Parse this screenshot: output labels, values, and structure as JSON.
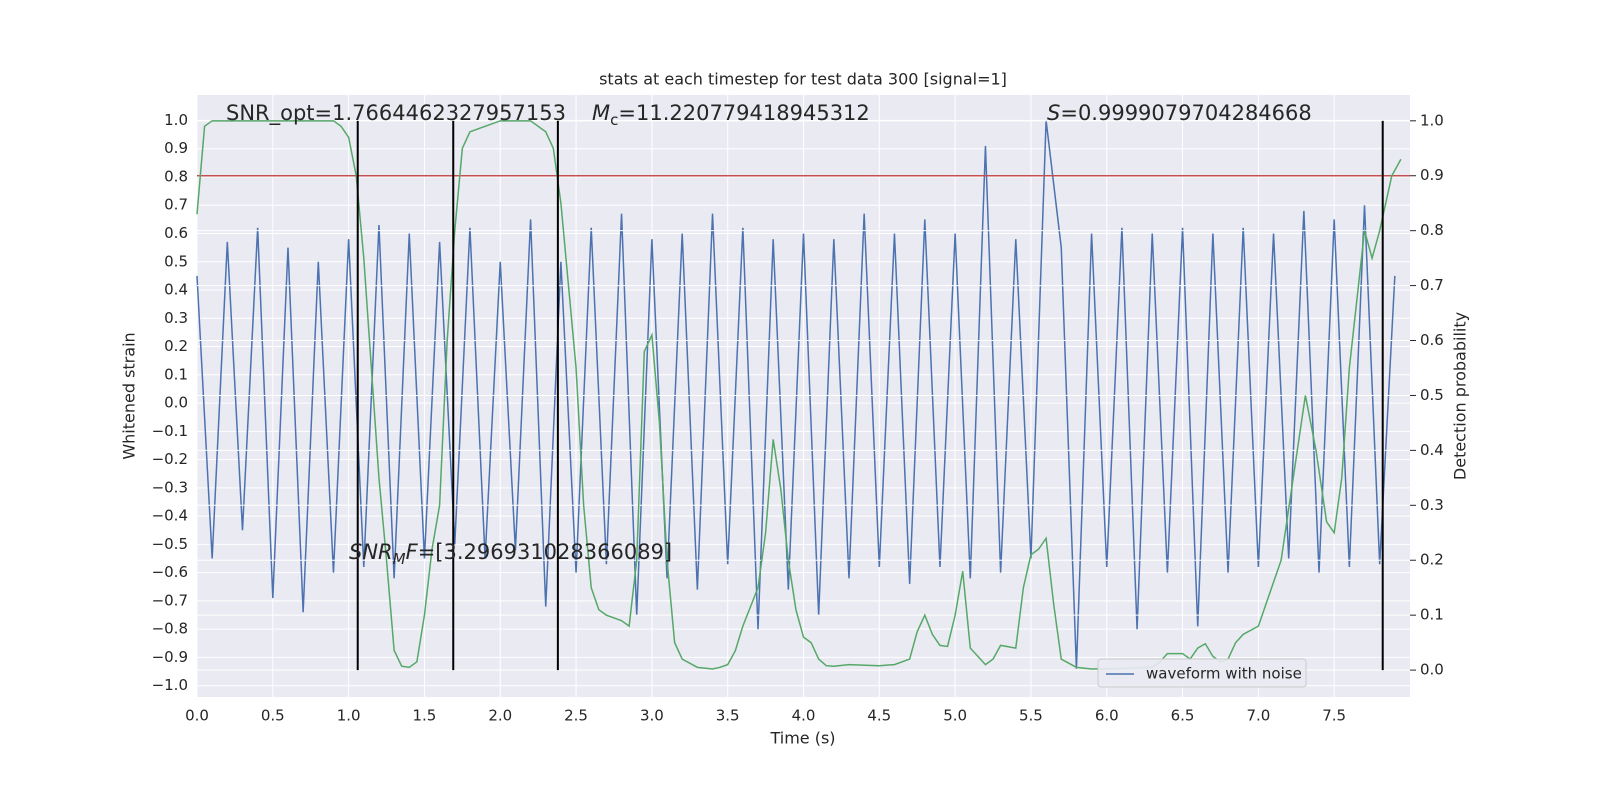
{
  "chart_data": {
    "type": "line",
    "title": "stats at each timestep for test data 300 [signal=1]",
    "xlabel": "Time (s)",
    "ylabel": "Whitened strain",
    "y2label": "Detection probability",
    "xlim": [
      0,
      8.0
    ],
    "ylim": [
      -1.04,
      1.09
    ],
    "y2lim": [
      -0.049,
      1.047
    ],
    "grid": true,
    "legend": "lower right",
    "xticks": [
      {
        "value": 0,
        "label": "0.0"
      },
      {
        "value": 0.5,
        "label": "0.5"
      },
      {
        "value": 1,
        "label": "1.0"
      },
      {
        "value": 1.5,
        "label": "1.5"
      },
      {
        "value": 2,
        "label": "2.0"
      },
      {
        "value": 2.5,
        "label": "2.5"
      },
      {
        "value": 3,
        "label": "3.0"
      },
      {
        "value": 3.5,
        "label": "3.5"
      },
      {
        "value": 4,
        "label": "4.0"
      },
      {
        "value": 4.5,
        "label": "4.5"
      },
      {
        "value": 5,
        "label": "5.0"
      },
      {
        "value": 5.5,
        "label": "5.5"
      },
      {
        "value": 6,
        "label": "6.0"
      },
      {
        "value": 6.5,
        "label": "6.5"
      },
      {
        "value": 7,
        "label": "7.0"
      },
      {
        "value": 7.5,
        "label": "7.5"
      }
    ],
    "yticks": [
      {
        "value": -1,
        "label": "−1.0"
      },
      {
        "value": -0.9,
        "label": "−0.9"
      },
      {
        "value": -0.8,
        "label": "−0.8"
      },
      {
        "value": -0.7,
        "label": "−0.7"
      },
      {
        "value": -0.6,
        "label": "−0.6"
      },
      {
        "value": -0.5,
        "label": "−0.5"
      },
      {
        "value": -0.4,
        "label": "−0.4"
      },
      {
        "value": -0.3,
        "label": "−0.3"
      },
      {
        "value": -0.2,
        "label": "−0.2"
      },
      {
        "value": -0.1,
        "label": "−0.1"
      },
      {
        "value": 0,
        "label": "0.0"
      },
      {
        "value": 0.1,
        "label": "0.1"
      },
      {
        "value": 0.2,
        "label": "0.2"
      },
      {
        "value": 0.3,
        "label": "0.3"
      },
      {
        "value": 0.4,
        "label": "0.4"
      },
      {
        "value": 0.5,
        "label": "0.5"
      },
      {
        "value": 0.6,
        "label": "0.6"
      },
      {
        "value": 0.7,
        "label": "0.7"
      },
      {
        "value": 0.8,
        "label": "0.8"
      },
      {
        "value": 0.9,
        "label": "0.9"
      },
      {
        "value": 1,
        "label": "1.0"
      }
    ],
    "y2ticks": [
      {
        "value": 0,
        "label": "0.0"
      },
      {
        "value": 0.1,
        "label": "0.1"
      },
      {
        "value": 0.2,
        "label": "0.2"
      },
      {
        "value": 0.3,
        "label": "0.3"
      },
      {
        "value": 0.4,
        "label": "0.4"
      },
      {
        "value": 0.5,
        "label": "0.5"
      },
      {
        "value": 0.6,
        "label": "0.6"
      },
      {
        "value": 0.7,
        "label": "0.7"
      },
      {
        "value": 0.8,
        "label": "0.8"
      },
      {
        "value": 0.9,
        "label": "0.9"
      },
      {
        "value": 1,
        "label": "1.0"
      }
    ],
    "series": [
      {
        "name": "waveform with noise",
        "color": "#4c72b0",
        "x": [
          0,
          0.1,
          0.2,
          0.3,
          0.4,
          0.5,
          0.6,
          0.7,
          0.8,
          0.9,
          1,
          1.1,
          1.2,
          1.3,
          1.4,
          1.5,
          1.6,
          1.7,
          1.8,
          1.9,
          2,
          2.1,
          2.2,
          2.3,
          2.4,
          2.5,
          2.6,
          2.7,
          2.8,
          2.9,
          3,
          3.1,
          3.2,
          3.3,
          3.4,
          3.5,
          3.6,
          3.7,
          3.8,
          3.9,
          4,
          4.1,
          4.2,
          4.3,
          4.4,
          4.5,
          4.6,
          4.7,
          4.8,
          4.9,
          5,
          5.1,
          5.2,
          5.3,
          5.4,
          5.5,
          5.6,
          5.7,
          5.8,
          5.9,
          6,
          6.1,
          6.2,
          6.3,
          6.4,
          6.5,
          6.6,
          6.7,
          6.8,
          6.9,
          7,
          7.1,
          7.2,
          7.3,
          7.4,
          7.5,
          7.6,
          7.7,
          7.8,
          7.9
        ],
        "values": [
          0.45,
          -0.55,
          0.57,
          -0.45,
          0.62,
          -0.69,
          0.55,
          -0.74,
          0.5,
          -0.6,
          0.58,
          -0.58,
          0.63,
          -0.62,
          0.6,
          -0.55,
          0.57,
          -0.5,
          0.62,
          -0.55,
          0.5,
          -0.52,
          0.65,
          -0.72,
          0.5,
          -0.6,
          0.62,
          -0.57,
          0.67,
          -0.75,
          0.58,
          -0.62,
          0.6,
          -0.66,
          0.67,
          -0.57,
          0.62,
          -0.8,
          0.58,
          -0.66,
          0.6,
          -0.75,
          0.58,
          -0.62,
          0.67,
          -0.58,
          0.6,
          -0.64,
          0.65,
          -0.58,
          0.6,
          -0.62,
          0.91,
          -0.6,
          0.58,
          -0.55,
          1.0,
          0.55,
          -0.94,
          0.6,
          -0.58,
          0.62,
          -0.8,
          0.6,
          -0.6,
          0.62,
          -0.79,
          0.6,
          -0.6,
          0.62,
          -0.58,
          0.6,
          -0.55,
          0.68,
          -0.6,
          0.65,
          -0.58,
          0.7,
          -0.57,
          0.45
        ]
      },
      {
        "color": "#55a868",
        "axis": "y2",
        "x": [
          0,
          0.05,
          0.1,
          0.3,
          0.5,
          0.7,
          0.9,
          0.95,
          1,
          1.05,
          1.1,
          1.15,
          1.2,
          1.25,
          1.3,
          1.35,
          1.4,
          1.45,
          1.5,
          1.55,
          1.6,
          1.65,
          1.7,
          1.75,
          1.8,
          1.9,
          2,
          2.1,
          2.2,
          2.3,
          2.35,
          2.4,
          2.45,
          2.5,
          2.55,
          2.6,
          2.65,
          2.7,
          2.8,
          2.85,
          2.9,
          2.95,
          3,
          3.05,
          3.1,
          3.15,
          3.2,
          3.3,
          3.4,
          3.45,
          3.5,
          3.55,
          3.6,
          3.7,
          3.75,
          3.8,
          3.85,
          3.9,
          3.95,
          4,
          4.05,
          4.1,
          4.15,
          4.2,
          4.3,
          4.5,
          4.6,
          4.7,
          4.75,
          4.8,
          4.85,
          4.9,
          4.95,
          5,
          5.05,
          5.1,
          5.2,
          5.25,
          5.3,
          5.4,
          5.45,
          5.5,
          5.55,
          5.6,
          5.65,
          5.7,
          5.8,
          5.9,
          6.1,
          6.2,
          6.3,
          6.35,
          6.4,
          6.5,
          6.55,
          6.6,
          6.65,
          6.7,
          6.75,
          6.8,
          6.85,
          6.9,
          7,
          7.15,
          7.31,
          7.38,
          7.45,
          7.5,
          7.55,
          7.6,
          7.7,
          7.75,
          7.8,
          7.88,
          7.94
        ],
        "values": [
          0.83,
          0.99,
          1.0,
          1.0,
          1.0,
          1.0,
          1.0,
          0.99,
          0.97,
          0.9,
          0.75,
          0.55,
          0.35,
          0.2,
          0.036,
          0.007,
          0.005,
          0.015,
          0.1,
          0.22,
          0.3,
          0.6,
          0.8,
          0.95,
          0.98,
          0.99,
          1.0,
          1.0,
          1.0,
          0.98,
          0.95,
          0.85,
          0.7,
          0.55,
          0.3,
          0.15,
          0.11,
          0.1,
          0.09,
          0.08,
          0.2,
          0.58,
          0.61,
          0.45,
          0.2,
          0.05,
          0.02,
          0.005,
          0.002,
          0.005,
          0.01,
          0.035,
          0.08,
          0.15,
          0.25,
          0.42,
          0.33,
          0.2,
          0.11,
          0.06,
          0.05,
          0.02,
          0.008,
          0.007,
          0.01,
          0.008,
          0.01,
          0.02,
          0.07,
          0.1,
          0.065,
          0.045,
          0.043,
          0.1,
          0.18,
          0.04,
          0.01,
          0.02,
          0.045,
          0.04,
          0.15,
          0.21,
          0.22,
          0.24,
          0.12,
          0.02,
          0.005,
          0.002,
          0.003,
          0.004,
          0.005,
          0.015,
          0.03,
          0.03,
          0.02,
          0.04,
          0.048,
          0.025,
          0.015,
          0.02,
          0.05,
          0.065,
          0.08,
          0.2,
          0.5,
          0.4,
          0.27,
          0.25,
          0.35,
          0.55,
          0.8,
          0.75,
          0.8,
          0.9,
          0.93
        ]
      }
    ],
    "hline": {
      "value": 0.9,
      "axis": "y2",
      "color": "#c44e52"
    },
    "vlines": {
      "x": [
        1.06,
        1.69,
        2.38,
        7.82
      ],
      "ymin": 0,
      "ymax": 1,
      "axis": "y2",
      "color": "#000000"
    },
    "annotations": [
      [
        "SNR_opt=1.7664462327957153"
      ],
      [
        "M",
        "c",
        "=11.220779418945312"
      ],
      [
        "S",
        "=0.9999079704284668"
      ],
      [
        "SNR",
        "M",
        "F",
        "=[3.296931028366089]"
      ]
    ]
  }
}
